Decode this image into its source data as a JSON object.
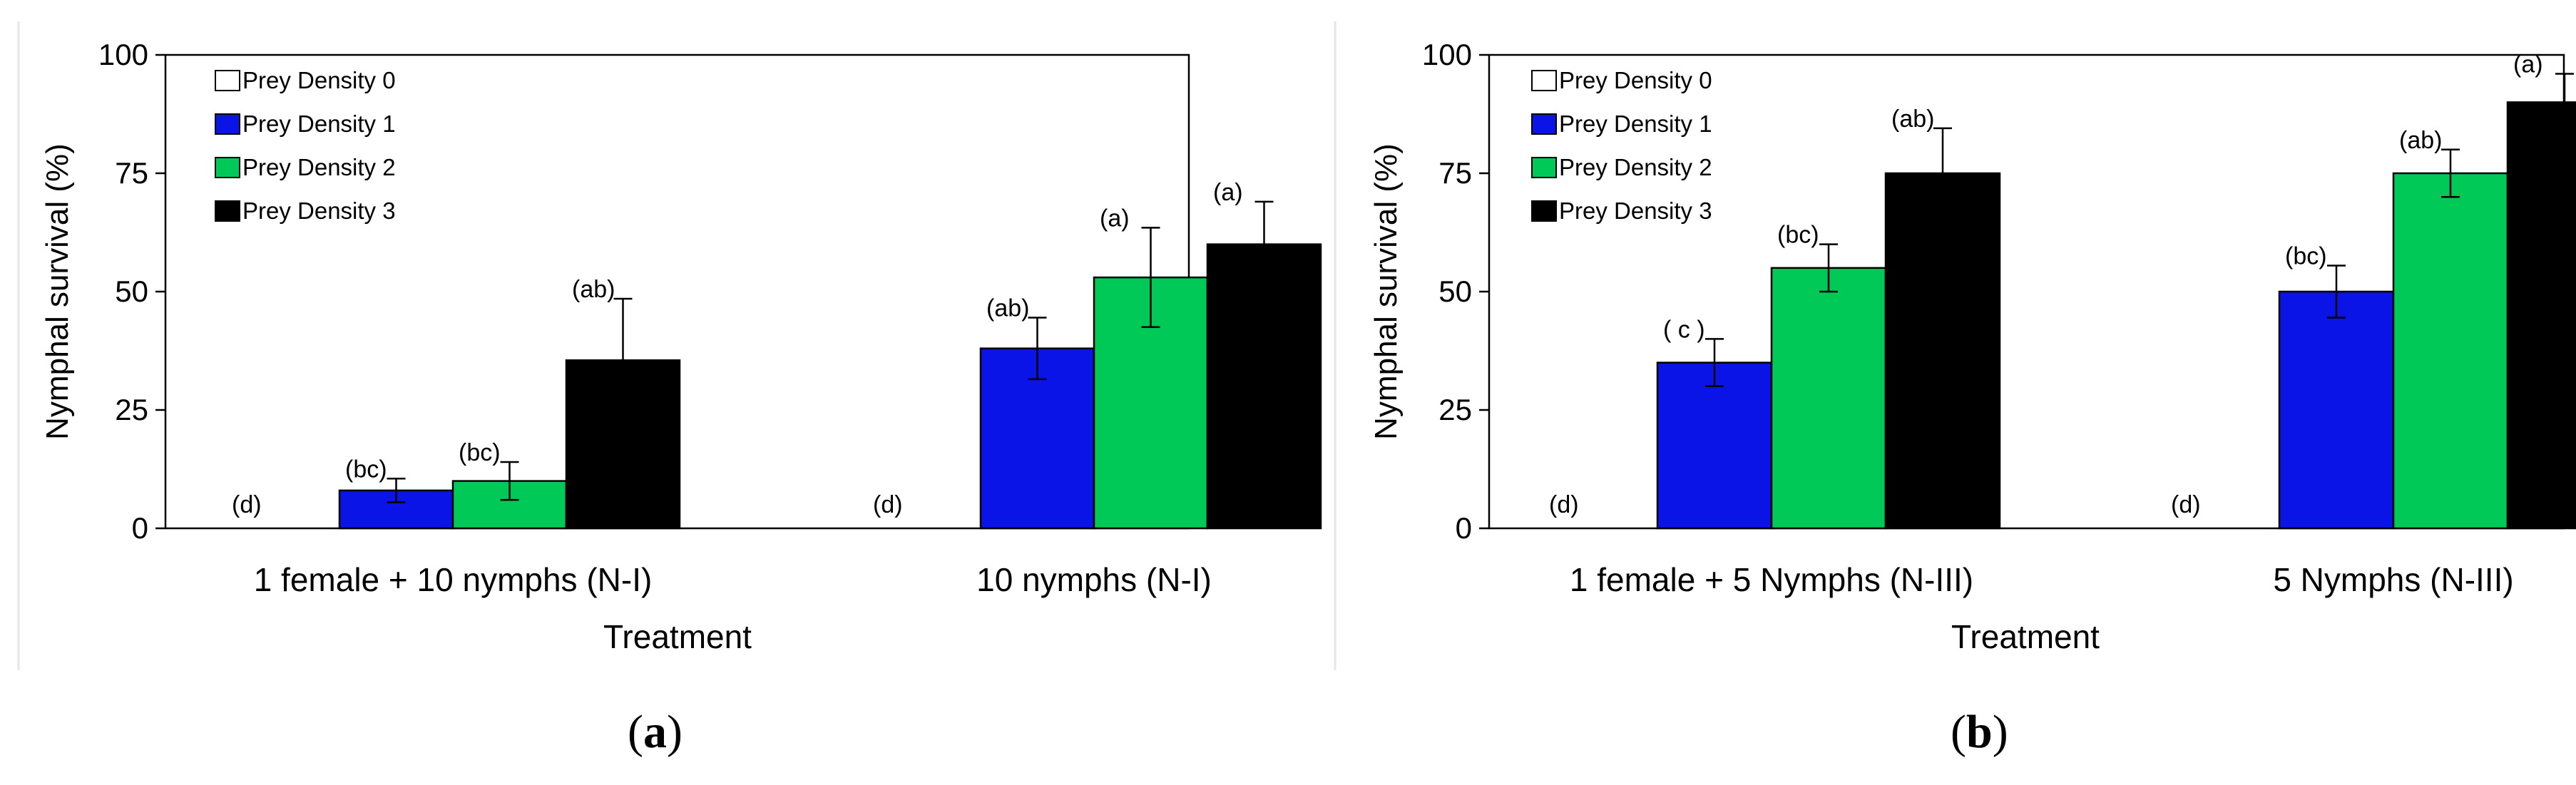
{
  "chart_data": [
    {
      "type": "bar",
      "panel_label": "a",
      "ylabel": "Nymphal survival (%)",
      "xlabel": "Treatment",
      "ylim": [
        0,
        100
      ],
      "yticks": [
        0,
        25,
        50,
        75,
        100
      ],
      "categories": [
        "1 female + 10 nymphs (N-I)",
        "10 nymphs (N-I)"
      ],
      "legend_position": "top-left",
      "series": [
        {
          "name": "Prey Density 0",
          "color": "#ffffff",
          "values": [
            0,
            0
          ],
          "errors": [
            0,
            0
          ],
          "labels": [
            "(d)",
            "(d)"
          ]
        },
        {
          "name": "Prey Density 1",
          "color": "#0a14e6",
          "values": [
            8,
            38
          ],
          "errors": [
            2.5,
            6.5
          ],
          "labels": [
            "(bc)",
            "(ab)"
          ]
        },
        {
          "name": "Prey Density 2",
          "color": "#00c957",
          "values": [
            10,
            53
          ],
          "errors": [
            4,
            10.5
          ],
          "labels": [
            "(bc)",
            "(a)"
          ]
        },
        {
          "name": "Prey Density 3",
          "color": "#000000",
          "values": [
            35.5,
            60
          ],
          "errors": [
            13,
            9
          ],
          "labels": [
            "(ab)",
            "(a)"
          ]
        }
      ]
    },
    {
      "type": "bar",
      "panel_label": "b",
      "ylabel": "Nymphal survival (%)",
      "xlabel": "Treatment",
      "ylim": [
        0,
        100
      ],
      "yticks": [
        0,
        25,
        50,
        75,
        100
      ],
      "categories": [
        "1 female + 5 Nymphs (N-III)",
        "5 Nymphs (N-III)"
      ],
      "legend_position": "top-left",
      "series": [
        {
          "name": "Prey Density 0",
          "color": "#ffffff",
          "values": [
            0,
            0
          ],
          "errors": [
            0,
            0
          ],
          "labels": [
            "(d)",
            "(d)"
          ]
        },
        {
          "name": "Prey Density 1",
          "color": "#0a14e6",
          "values": [
            35,
            50
          ],
          "errors": [
            5,
            5.5
          ],
          "labels": [
            "( c )",
            "(bc)"
          ]
        },
        {
          "name": "Prey Density 2",
          "color": "#00c957",
          "values": [
            55,
            75
          ],
          "errors": [
            5,
            5
          ],
          "labels": [
            "(bc)",
            "(ab)"
          ]
        },
        {
          "name": "Prey Density 3",
          "color": "#000000",
          "values": [
            75,
            90
          ],
          "errors": [
            9.5,
            6
          ],
          "labels": [
            "(ab)",
            "(a)"
          ]
        }
      ]
    }
  ]
}
